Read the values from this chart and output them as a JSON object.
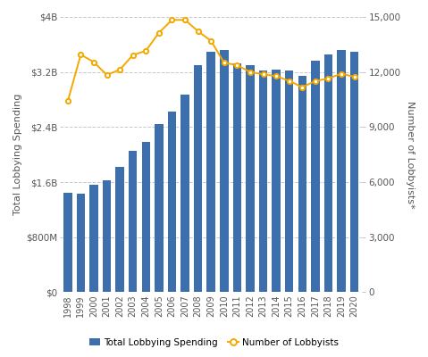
{
  "years": [
    1998,
    1999,
    2000,
    2001,
    2002,
    2003,
    2004,
    2005,
    2006,
    2007,
    2008,
    2009,
    2010,
    2011,
    2012,
    2013,
    2014,
    2015,
    2016,
    2017,
    2018,
    2019,
    2020
  ],
  "spending": [
    1440000000.0,
    1430000000.0,
    1560000000.0,
    1630000000.0,
    1820000000.0,
    2060000000.0,
    2190000000.0,
    2440000000.0,
    2630000000.0,
    2870000000.0,
    3300000000.0,
    3490000000.0,
    3520000000.0,
    3320000000.0,
    3300000000.0,
    3220000000.0,
    3230000000.0,
    3220000000.0,
    3150000000.0,
    3370000000.0,
    3460000000.0,
    3520000000.0,
    3500000000.0
  ],
  "lobbyists": [
    10408,
    12947,
    12541,
    11843,
    12131,
    12923,
    13158,
    14145,
    14837,
    14842,
    14219,
    13694,
    12504,
    12372,
    12002,
    11878,
    11777,
    11514,
    11174,
    11508,
    11654,
    11911,
    11737
  ],
  "bar_color": "#3d6fad",
  "line_color": "#f5a800",
  "background_color": "#ffffff",
  "ylabel_left": "Total Lobbying Spending",
  "ylabel_right": "Number of Lobbyists*",
  "ylim_left": [
    0,
    4000000000.0
  ],
  "ylim_right": [
    0,
    15000
  ],
  "yticks_left": [
    0,
    800000000,
    1600000000,
    2400000000,
    3200000000,
    4000000000
  ],
  "ytick_labels_left": [
    "$0",
    "$800M",
    "$1.6B",
    "$2.4B",
    "$3.2B",
    "$4B"
  ],
  "yticks_right": [
    0,
    3000,
    6000,
    9000,
    12000,
    15000
  ],
  "ytick_labels_right": [
    "0",
    "3,000",
    "6,000",
    "9,000",
    "12,000",
    "15,000"
  ],
  "legend_labels": [
    "Total Lobbying Spending",
    "Number of Lobbyists"
  ],
  "grid_color": "#c8c8c8",
  "axis_color": "#555555",
  "tick_label_size": 7.5,
  "ylabel_size": 8.0
}
